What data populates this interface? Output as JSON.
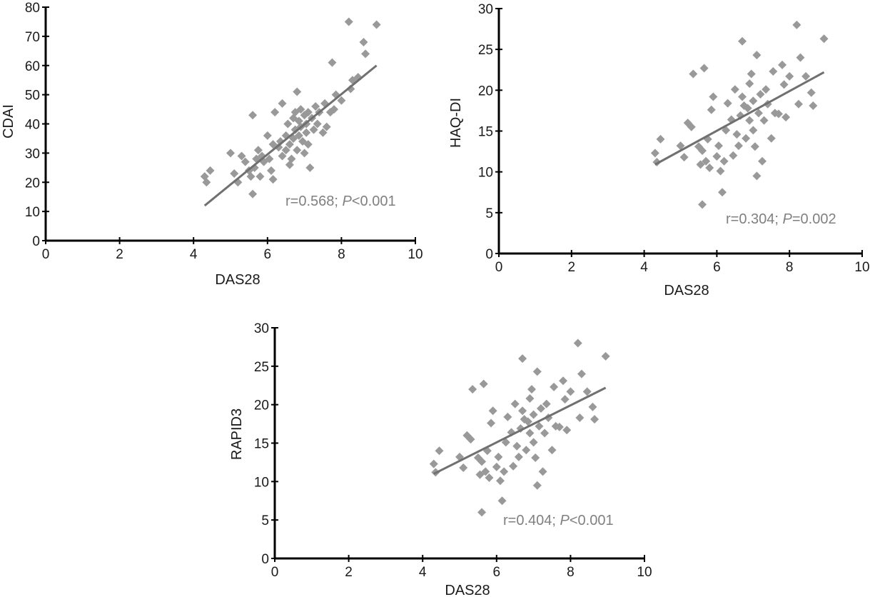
{
  "colors": {
    "marker": "#999999",
    "trend": "#707070",
    "axis": "#000000",
    "annotation": "#808080"
  },
  "chart_data": [
    {
      "type": "scatter",
      "xlabel": "DAS28",
      "ylabel": "CDAI",
      "xlim": [
        0,
        10
      ],
      "ylim": [
        0,
        80
      ],
      "xticks": [
        "0",
        "2",
        "4",
        "6",
        "8",
        "10"
      ],
      "yticks": [
        "0",
        "10",
        "20",
        "30",
        "40",
        "50",
        "60",
        "70",
        "80"
      ],
      "annotation": {
        "r": "r=0.568; ",
        "p_symbol": "P",
        "p_rest": "<0.001"
      },
      "trend": {
        "x": [
          4.3,
          8.95
        ],
        "y": [
          12,
          60
        ]
      },
      "points": [
        [
          4.3,
          22
        ],
        [
          4.35,
          20
        ],
        [
          4.45,
          24
        ],
        [
          5.0,
          30
        ],
        [
          5.1,
          23
        ],
        [
          5.2,
          20
        ],
        [
          5.3,
          29
        ],
        [
          5.4,
          27
        ],
        [
          5.5,
          24
        ],
        [
          5.55,
          22
        ],
        [
          5.6,
          43
        ],
        [
          5.6,
          16
        ],
        [
          5.65,
          25
        ],
        [
          5.7,
          28
        ],
        [
          5.75,
          31
        ],
        [
          5.8,
          22
        ],
        [
          5.85,
          29
        ],
        [
          5.9,
          27
        ],
        [
          6.0,
          36
        ],
        [
          6.05,
          28
        ],
        [
          6.1,
          24
        ],
        [
          6.15,
          33
        ],
        [
          6.15,
          21
        ],
        [
          6.2,
          44
        ],
        [
          6.3,
          32
        ],
        [
          6.35,
          34
        ],
        [
          6.4,
          47
        ],
        [
          6.4,
          29
        ],
        [
          6.5,
          36
        ],
        [
          6.5,
          31
        ],
        [
          6.55,
          40
        ],
        [
          6.6,
          33
        ],
        [
          6.6,
          26
        ],
        [
          6.65,
          28
        ],
        [
          6.7,
          42
        ],
        [
          6.7,
          35
        ],
        [
          6.75,
          38
        ],
        [
          6.75,
          44
        ],
        [
          6.8,
          51
        ],
        [
          6.8,
          31
        ],
        [
          6.85,
          41
        ],
        [
          6.85,
          36
        ],
        [
          6.9,
          45
        ],
        [
          6.9,
          39
        ],
        [
          6.95,
          34
        ],
        [
          7.0,
          43
        ],
        [
          7.0,
          30
        ],
        [
          7.05,
          37
        ],
        [
          7.05,
          40
        ],
        [
          7.1,
          44
        ],
        [
          7.1,
          33
        ],
        [
          7.15,
          25
        ],
        [
          7.2,
          42
        ],
        [
          7.25,
          38
        ],
        [
          7.3,
          46
        ],
        [
          7.35,
          40
        ],
        [
          7.4,
          44
        ],
        [
          7.5,
          37
        ],
        [
          7.55,
          47
        ],
        [
          7.6,
          39
        ],
        [
          7.7,
          44
        ],
        [
          7.75,
          61
        ],
        [
          7.8,
          45
        ],
        [
          7.85,
          50
        ],
        [
          8.0,
          48
        ],
        [
          8.2,
          75
        ],
        [
          8.25,
          52
        ],
        [
          8.3,
          55
        ],
        [
          8.45,
          56
        ],
        [
          8.6,
          68
        ],
        [
          8.65,
          64
        ],
        [
          8.95,
          74
        ]
      ]
    },
    {
      "type": "scatter",
      "xlabel": "DAS28",
      "ylabel": "HAQ-DI",
      "xlim": [
        0,
        10
      ],
      "ylim": [
        0,
        30
      ],
      "xticks": [
        "0",
        "2",
        "4",
        "6",
        "8",
        "10"
      ],
      "yticks": [
        "0",
        "5",
        "10",
        "15",
        "20",
        "25",
        "30"
      ],
      "annotation": {
        "r": "r=0.304; ",
        "p_symbol": "P",
        "p_rest": "=0.002"
      },
      "trend": {
        "x": [
          4.3,
          8.95
        ],
        "y": [
          10.9,
          22.2
        ]
      },
      "points": [
        [
          4.3,
          12.3
        ],
        [
          4.45,
          14
        ],
        [
          4.35,
          11.2
        ],
        [
          5.0,
          13.2
        ],
        [
          5.1,
          11.8
        ],
        [
          5.2,
          16
        ],
        [
          5.3,
          15.5
        ],
        [
          5.35,
          22
        ],
        [
          5.5,
          13.1
        ],
        [
          5.55,
          10.9
        ],
        [
          5.6,
          6
        ],
        [
          5.6,
          12.6
        ],
        [
          5.65,
          22.7
        ],
        [
          5.7,
          11.3
        ],
        [
          5.75,
          14
        ],
        [
          5.8,
          10.5
        ],
        [
          5.85,
          17.6
        ],
        [
          5.9,
          19.2
        ],
        [
          6.0,
          11.9
        ],
        [
          6.05,
          13.2
        ],
        [
          6.1,
          10.1
        ],
        [
          6.15,
          7.5
        ],
        [
          6.2,
          11.3
        ],
        [
          6.25,
          15.1
        ],
        [
          6.3,
          18.4
        ],
        [
          6.4,
          16.4
        ],
        [
          6.45,
          12
        ],
        [
          6.5,
          20.1
        ],
        [
          6.55,
          14.6
        ],
        [
          6.6,
          13.2
        ],
        [
          6.65,
          16.9
        ],
        [
          6.7,
          26
        ],
        [
          6.7,
          19.2
        ],
        [
          6.75,
          18.1
        ],
        [
          6.8,
          14.1
        ],
        [
          6.85,
          17.8
        ],
        [
          6.9,
          20.8
        ],
        [
          6.9,
          16.3
        ],
        [
          6.95,
          22
        ],
        [
          7.0,
          15.1
        ],
        [
          7.0,
          18.7
        ],
        [
          7.05,
          13.1
        ],
        [
          7.1,
          9.5
        ],
        [
          7.1,
          24.3
        ],
        [
          7.15,
          17.2
        ],
        [
          7.2,
          19.5
        ],
        [
          7.25,
          11.3
        ],
        [
          7.3,
          16.3
        ],
        [
          7.35,
          20.1
        ],
        [
          7.4,
          18.3
        ],
        [
          7.5,
          14.1
        ],
        [
          7.55,
          22.3
        ],
        [
          7.6,
          17.2
        ],
        [
          7.7,
          17.1
        ],
        [
          7.8,
          23.1
        ],
        [
          7.85,
          20.7
        ],
        [
          7.9,
          16.7
        ],
        [
          8.0,
          21.7
        ],
        [
          8.2,
          28
        ],
        [
          8.25,
          18.3
        ],
        [
          8.3,
          24
        ],
        [
          8.45,
          21.7
        ],
        [
          8.6,
          19.7
        ],
        [
          8.65,
          18.1
        ],
        [
          8.95,
          26.3
        ]
      ]
    },
    {
      "type": "scatter",
      "xlabel": "DAS28",
      "ylabel": "RAPID3",
      "xlim": [
        0,
        10
      ],
      "ylim": [
        0,
        30
      ],
      "xticks": [
        "0",
        "2",
        "4",
        "6",
        "8",
        "10"
      ],
      "yticks": [
        "0",
        "5",
        "10",
        "15",
        "20",
        "25",
        "30"
      ],
      "annotation": {
        "r": "r=0.404; ",
        "p_symbol": "P",
        "p_rest": "<0.001"
      },
      "trend": {
        "x": [
          4.3,
          8.95
        ],
        "y": [
          11.0,
          22.2
        ]
      },
      "points": [
        [
          4.3,
          12.3
        ],
        [
          4.45,
          14
        ],
        [
          4.35,
          11.2
        ],
        [
          5.0,
          13.2
        ],
        [
          5.1,
          11.8
        ],
        [
          5.2,
          16
        ],
        [
          5.3,
          15.5
        ],
        [
          5.35,
          22
        ],
        [
          5.5,
          13.1
        ],
        [
          5.55,
          10.9
        ],
        [
          5.6,
          6
        ],
        [
          5.6,
          12.6
        ],
        [
          5.65,
          22.7
        ],
        [
          5.7,
          11.3
        ],
        [
          5.75,
          14
        ],
        [
          5.8,
          10.5
        ],
        [
          5.85,
          17.6
        ],
        [
          5.9,
          19.2
        ],
        [
          6.0,
          11.9
        ],
        [
          6.05,
          13.2
        ],
        [
          6.1,
          10.1
        ],
        [
          6.15,
          7.5
        ],
        [
          6.2,
          11.3
        ],
        [
          6.25,
          15.1
        ],
        [
          6.3,
          18.4
        ],
        [
          6.4,
          16.4
        ],
        [
          6.45,
          12
        ],
        [
          6.5,
          20.1
        ],
        [
          6.55,
          14.6
        ],
        [
          6.6,
          13.2
        ],
        [
          6.65,
          16.9
        ],
        [
          6.7,
          26
        ],
        [
          6.7,
          19.2
        ],
        [
          6.75,
          18.1
        ],
        [
          6.8,
          14.1
        ],
        [
          6.85,
          17.8
        ],
        [
          6.9,
          20.8
        ],
        [
          6.9,
          16.3
        ],
        [
          6.95,
          22
        ],
        [
          7.0,
          15.1
        ],
        [
          7.0,
          18.7
        ],
        [
          7.05,
          13.1
        ],
        [
          7.1,
          9.5
        ],
        [
          7.1,
          24.3
        ],
        [
          7.15,
          17.2
        ],
        [
          7.2,
          19.5
        ],
        [
          7.25,
          11.3
        ],
        [
          7.3,
          16.3
        ],
        [
          7.35,
          20.1
        ],
        [
          7.4,
          18.3
        ],
        [
          7.5,
          14.1
        ],
        [
          7.55,
          22.3
        ],
        [
          7.6,
          17.2
        ],
        [
          7.7,
          17.1
        ],
        [
          7.8,
          23.1
        ],
        [
          7.85,
          20.7
        ],
        [
          7.9,
          16.7
        ],
        [
          8.0,
          21.7
        ],
        [
          8.2,
          28
        ],
        [
          8.25,
          18.3
        ],
        [
          8.3,
          24
        ],
        [
          8.45,
          21.7
        ],
        [
          8.6,
          19.7
        ],
        [
          8.65,
          18.1
        ],
        [
          8.95,
          26.3
        ]
      ]
    }
  ]
}
